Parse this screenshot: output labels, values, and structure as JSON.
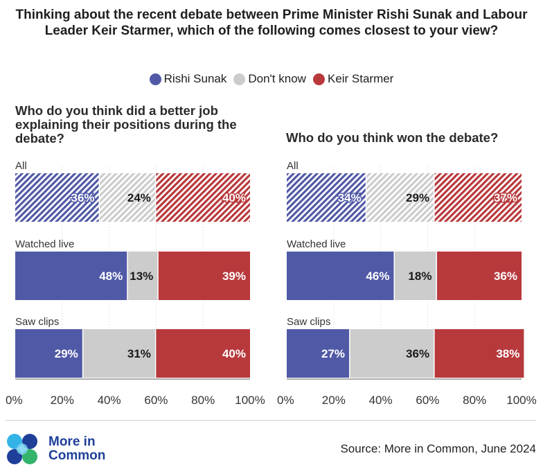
{
  "title": "Thinking about the recent debate between Prime Minister Rishi Sunak and Labour Leader Keir Starmer, which of the following comes closest to your view?",
  "legend": [
    {
      "label": "Rishi Sunak",
      "color": "#5059a6"
    },
    {
      "label": "Don't know",
      "color": "#cccccc"
    },
    {
      "label": "Keir Starmer",
      "color": "#b8393c"
    }
  ],
  "colors": {
    "sunak": "#5059a6",
    "dontknow": "#cccccc",
    "starmer": "#b8393c",
    "sunak_hatch": "#7c83bd",
    "starmer_hatch": "#cf6f71",
    "dontknow_hatch": "#dcdcdc"
  },
  "chart_data": [
    {
      "type": "bar",
      "orientation": "horizontal-stacked",
      "title": "Who do you think did a better job explaining their positions during the debate?",
      "categories": [
        "All",
        "Watched live",
        "Saw clips"
      ],
      "series": [
        {
          "name": "Rishi Sunak",
          "values": [
            36,
            48,
            29
          ]
        },
        {
          "name": "Don't know",
          "values": [
            24,
            13,
            31
          ]
        },
        {
          "name": "Keir Starmer",
          "values": [
            40,
            39,
            40
          ]
        }
      ],
      "xlim": [
        0,
        100
      ],
      "xticks": [
        "0%",
        "20%",
        "40%",
        "60%",
        "80%",
        "100%"
      ],
      "hatched_categories": [
        "All"
      ]
    },
    {
      "type": "bar",
      "orientation": "horizontal-stacked",
      "title": "Who do you think won the debate?",
      "categories": [
        "All",
        "Watched live",
        "Saw clips"
      ],
      "series": [
        {
          "name": "Rishi Sunak",
          "values": [
            34,
            46,
            27
          ]
        },
        {
          "name": "Don't know",
          "values": [
            29,
            18,
            36
          ]
        },
        {
          "name": "Keir Starmer",
          "values": [
            37,
            36,
            38
          ]
        }
      ],
      "xlim": [
        0,
        100
      ],
      "xticks": [
        "0%",
        "20%",
        "40%",
        "60%",
        "80%",
        "100%"
      ],
      "hatched_categories": [
        "All"
      ]
    }
  ],
  "footer": {
    "logo_line1": "More in",
    "logo_line2": "Common",
    "source": "Source: More in Common, June 2024"
  }
}
